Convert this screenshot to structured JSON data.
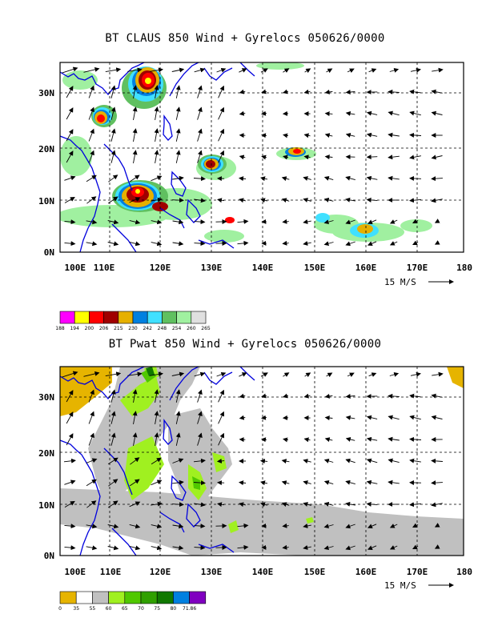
{
  "panels": [
    {
      "title": "BT CLAUS 850 Wind + Gyrelocs 050626/0000",
      "x_ticks": [
        "100E",
        "110E",
        "120E",
        "130E",
        "140E",
        "150E",
        "160E",
        "170E",
        "180"
      ],
      "y_ticks": [
        "0N",
        "10N",
        "20N",
        "30N"
      ],
      "scale_label": "15 M/S",
      "legend": {
        "colors": [
          "#ff00ff",
          "#ffff00",
          "#ff0000",
          "#a00000",
          "#e6b000",
          "#0080e0",
          "#40e0ff",
          "#60c060",
          "#a0f0a0",
          "#e0e0e0"
        ],
        "labels": [
          "188",
          "194",
          "200",
          "206",
          "215",
          "230",
          "242",
          "248",
          "254",
          "260",
          "265"
        ]
      }
    },
    {
      "title": "BT Pwat 850 Wind + Gyrelocs 050626/0000",
      "x_ticks": [
        "100E",
        "110E",
        "120E",
        "130E",
        "140E",
        "150E",
        "160E",
        "170E",
        "180"
      ],
      "y_ticks": [
        "0N",
        "10N",
        "20N",
        "30N"
      ],
      "scale_label": "15 M/S",
      "legend": {
        "colors": [
          "#e6b400",
          "#ffffff",
          "#c0c0c0",
          "#a0f020",
          "#50c800",
          "#30a000",
          "#107800",
          "#0080e0",
          "#8000c0"
        ],
        "labels": [
          "0",
          "35",
          "55",
          "60",
          "65",
          "70",
          "75",
          "80",
          "71.86"
        ]
      }
    }
  ]
}
